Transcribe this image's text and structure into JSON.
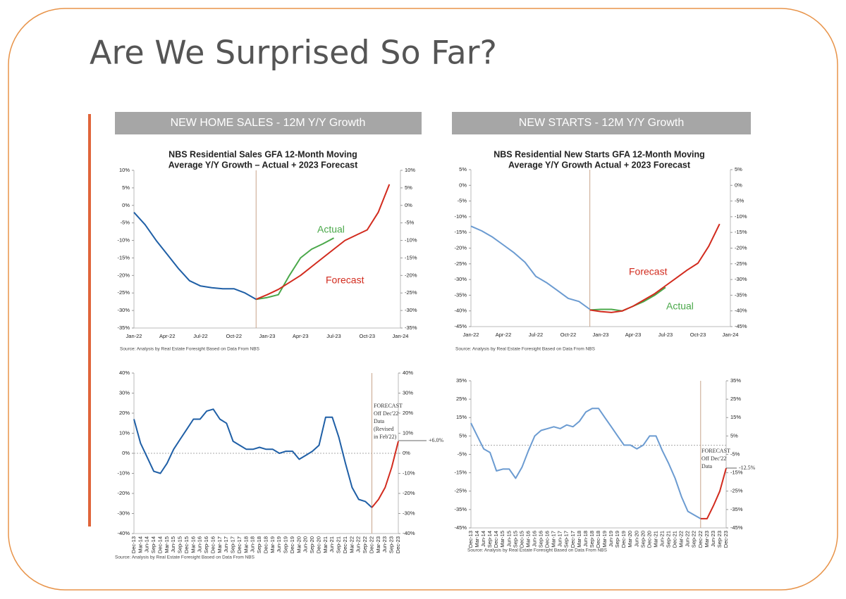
{
  "slide": {
    "title": "Are We Surprised So Far?",
    "headers": [
      "NEW HOME SALES - 12M Y/Y Growth",
      "NEW STARTS - 12M Y/Y Growth"
    ]
  },
  "chart_data": [
    {
      "type": "line",
      "title": [
        "NBS Residential Sales GFA 12-Month Moving",
        "Average Y/Y Growth – Actual + 2023 Forecast"
      ],
      "categories": [
        "Jan-22",
        null,
        null,
        "Apr-22",
        null,
        null,
        "Jul-22",
        null,
        null,
        "Oct-22",
        null,
        null,
        "Jan-23",
        null,
        null,
        "Apr-23",
        null,
        null,
        "Jul-23",
        null,
        null,
        "Oct-23",
        null,
        null,
        "Jan-24"
      ],
      "series": [
        {
          "color": "#1f5fa6",
          "values": [
            -2,
            -5.5,
            -10,
            -14,
            -18,
            -21.5,
            -23,
            -23.5,
            -23.8,
            -23.8,
            -25,
            -26.8,
            null,
            null,
            null,
            null,
            null,
            null,
            null,
            null,
            null,
            null,
            null,
            null,
            null
          ]
        },
        {
          "name": "Actual",
          "color": "#4aa84a",
          "values": [
            null,
            null,
            null,
            null,
            null,
            null,
            null,
            null,
            null,
            null,
            null,
            -26.8,
            -26.3,
            -25.5,
            -20,
            -15,
            -12.5,
            -11,
            -9.3,
            null,
            null,
            null,
            null,
            null,
            null
          ]
        },
        {
          "name": "Forecast",
          "color": "#d22b1e",
          "values": [
            null,
            null,
            null,
            null,
            null,
            null,
            null,
            null,
            null,
            null,
            null,
            -26.8,
            -25.5,
            -24,
            -22,
            -20,
            -17.5,
            -15,
            -12.5,
            -10,
            -8.5,
            -7,
            -2,
            6,
            null
          ]
        }
      ],
      "ylim": [
        -35,
        10
      ],
      "yticks": [
        {
          "value": 10,
          "label": "10%"
        },
        {
          "value": 5,
          "label": "5%"
        },
        {
          "value": 0,
          "label": "0%"
        },
        {
          "value": -5,
          "label": "-5%"
        },
        {
          "value": -10,
          "label": "-10%"
        },
        {
          "value": -15,
          "label": "-15%"
        },
        {
          "value": -20,
          "label": "-20%"
        },
        {
          "value": -25,
          "label": "-25%"
        },
        {
          "value": -30,
          "label": "-30%"
        },
        {
          "value": -35,
          "label": "-35%"
        }
      ],
      "y2lim": [
        -35,
        10
      ],
      "y2ticks": [
        {
          "value": 10,
          "label": "10%"
        },
        {
          "value": 5,
          "label": "5%"
        },
        {
          "value": 0,
          "label": "0%"
        },
        {
          "value": -5,
          "label": "-5%"
        },
        {
          "value": -10,
          "label": "-10%"
        },
        {
          "value": -15,
          "label": "-15%"
        },
        {
          "value": -20,
          "label": "-20%"
        },
        {
          "value": -25,
          "label": "-25%"
        },
        {
          "value": -30,
          "label": "-30%"
        },
        {
          "value": -35,
          "label": "-35%"
        }
      ],
      "divider_index": 11,
      "zero_line": false,
      "source": "Source: Analysis by Real Estate Foresight Based on Data From NBS"
    },
    {
      "type": "line",
      "title": [
        "NBS Residential New Starts GFA 12-Month Moving",
        "Average Y/Y Growth Actual + 2023 Forecast"
      ],
      "categories": [
        "Jan-22",
        null,
        null,
        "Apr-22",
        null,
        null,
        "Jul-22",
        null,
        null,
        "Oct-22",
        null,
        null,
        "Jan-23",
        null,
        null,
        "Apr-23",
        null,
        null,
        "Jul-23",
        null,
        null,
        "Oct-23",
        null,
        null,
        "Jan-24"
      ],
      "series": [
        {
          "color": "#6b9bd1",
          "values": [
            -13,
            -14.5,
            -16.5,
            -19,
            -21.5,
            -24.5,
            -29,
            -31,
            -33.5,
            -36,
            -37,
            -39.5,
            null,
            null,
            null,
            null,
            null,
            null,
            null,
            null,
            null,
            null,
            null,
            null,
            null
          ]
        },
        {
          "name": "Actual",
          "color": "#4aa84a",
          "values": [
            null,
            null,
            null,
            null,
            null,
            null,
            null,
            null,
            null,
            null,
            null,
            -39.7,
            -39.5,
            -39.5,
            -40,
            -38.5,
            -37,
            -35,
            -32.5,
            null,
            null,
            null,
            null,
            null,
            null
          ]
        },
        {
          "name": "Forecast",
          "color": "#d22b1e",
          "values": [
            null,
            null,
            null,
            null,
            null,
            null,
            null,
            null,
            null,
            null,
            null,
            -39.7,
            -40.2,
            -40.5,
            -40,
            -38.5,
            -36.5,
            -34.5,
            -32,
            -29.5,
            -27,
            -24.8,
            -19.4,
            -12.3,
            null
          ]
        }
      ],
      "ylim": [
        -45,
        5
      ],
      "yticks": [
        {
          "value": 5,
          "label": "5%"
        },
        {
          "value": 0,
          "label": "0%"
        },
        {
          "value": -5,
          "label": "-5%"
        },
        {
          "value": -10,
          "label": "-10%"
        },
        {
          "value": -15,
          "label": "-15%"
        },
        {
          "value": -20,
          "label": "-20%"
        },
        {
          "value": -25,
          "label": "-25%"
        },
        {
          "value": -30,
          "label": "-30%"
        },
        {
          "value": -35,
          "label": "-35%"
        },
        {
          "value": -40,
          "label": "-40%"
        },
        {
          "value": -45,
          "label": "-45%"
        }
      ],
      "y2lim": [
        -45,
        5
      ],
      "y2ticks": [
        {
          "value": 5,
          "label": "5%"
        },
        {
          "value": 0,
          "label": "0%"
        },
        {
          "value": -5,
          "label": "-5%"
        },
        {
          "value": -10,
          "label": "-10%"
        },
        {
          "value": -15,
          "label": "-15%"
        },
        {
          "value": -20,
          "label": "-20%"
        },
        {
          "value": -25,
          "label": "-25%"
        },
        {
          "value": -30,
          "label": "-30%"
        },
        {
          "value": -35,
          "label": "-35%"
        },
        {
          "value": -40,
          "label": "-40%"
        },
        {
          "value": -45,
          "label": "-45%"
        }
      ],
      "divider_index": 11,
      "zero_line": false,
      "source": "Source: Analysis by Real Estate Foresight Based on Data From NBS"
    },
    {
      "type": "line",
      "categories": [
        "Dec-13",
        "Mar-14",
        "Jun-14",
        "Sep-14",
        "Dec-14",
        "Mar-15",
        "Jun-15",
        "Sep-15",
        "Dec-15",
        "Mar-16",
        "Jun-16",
        "Sep-16",
        "Dec-16",
        "Mar-17",
        "Jun-17",
        "Sep-17",
        "Dec-17",
        "Mar-18",
        "Jun-18",
        "Sep-18",
        "Dec-18",
        "Mar-19",
        "Jun-19",
        "Sep-19",
        "Dec-19",
        "Mar-20",
        "Jun-20",
        "Sep-20",
        "Dec-20",
        "Mar-21",
        "Jun-21",
        "Sep-21",
        "Dec-21",
        "Mar-22",
        "Jun-22",
        "Sep-22",
        "Dec-22",
        "Mar-23",
        "Jun-23",
        "Sep-23",
        "Dec-23"
      ],
      "series": [
        {
          "color": "#1f5fa6",
          "values": [
            17,
            5,
            -2,
            -9,
            -10,
            -5,
            2,
            7,
            12,
            17,
            17,
            21,
            22,
            17,
            15,
            6,
            4,
            2,
            2,
            3,
            2,
            2,
            0,
            1,
            1,
            -3,
            -1,
            1,
            4,
            18,
            18,
            8,
            -5,
            -17,
            -23,
            -24,
            -27,
            null,
            null,
            null,
            null
          ]
        },
        {
          "color": "#d22b1e",
          "values": [
            null,
            null,
            null,
            null,
            null,
            null,
            null,
            null,
            null,
            null,
            null,
            null,
            null,
            null,
            null,
            null,
            null,
            null,
            null,
            null,
            null,
            null,
            null,
            null,
            null,
            null,
            null,
            null,
            null,
            null,
            null,
            null,
            null,
            null,
            null,
            null,
            -27,
            -23,
            -17,
            -7,
            6
          ]
        }
      ],
      "ylim": [
        -40,
        40
      ],
      "yticks": [
        {
          "value": 40,
          "label": "40%"
        },
        {
          "value": 30,
          "label": "30%"
        },
        {
          "value": 20,
          "label": "20%"
        },
        {
          "value": 10,
          "label": "10%"
        },
        {
          "value": 0,
          "label": "0%"
        },
        {
          "value": -10,
          "label": "-10%"
        },
        {
          "value": -20,
          "label": "-20%"
        },
        {
          "value": -30,
          "label": "-30%"
        },
        {
          "value": -40,
          "label": "-40%"
        }
      ],
      "y2lim": [
        -40,
        40
      ],
      "y2ticks": [
        {
          "value": 40,
          "label": "40%"
        },
        {
          "value": 30,
          "label": "30%"
        },
        {
          "value": 20,
          "label": "20%"
        },
        {
          "value": 10,
          "label": "10%"
        },
        {
          "value": 0,
          "label": "0%"
        },
        {
          "value": -10,
          "label": "-10%"
        },
        {
          "value": -20,
          "label": "-20%"
        },
        {
          "value": -30,
          "label": "-30%"
        },
        {
          "value": -40,
          "label": "-40%"
        }
      ],
      "divider_index": 36,
      "zero_line": true,
      "annotations": [
        "FORECAST",
        "Off Dec'22",
        "Data",
        "(Revised",
        "in Feb'22)",
        "+6.0%"
      ],
      "source": "Source: Analysis by Real Estate Foresight Based on Data From NBS"
    },
    {
      "type": "line",
      "categories": [
        "Dec-13",
        "Mar-14",
        "Jun-14",
        "Sep-14",
        "Dec-14",
        "Mar-15",
        "Jun-15",
        "Sep-15",
        "Dec-15",
        "Mar-16",
        "Jun-16",
        "Sep-16",
        "Dec-16",
        "Mar-17",
        "Jun-17",
        "Sep-17",
        "Dec-17",
        "Mar-18",
        "Jun-18",
        "Sep-18",
        "Dec-18",
        "Mar-19",
        "Jun-19",
        "Sep-19",
        "Dec-19",
        "Mar-20",
        "Jun-20",
        "Sep-20",
        "Dec-20",
        "Mar-21",
        "Jun-21",
        "Sep-21",
        "Dec-21",
        "Mar-22",
        "Jun-22",
        "Sep-22",
        "Dec-22",
        "Mar-23",
        "Jun-23",
        "Sep-23",
        "Dec-23"
      ],
      "series": [
        {
          "color": "#6b9bd1",
          "values": [
            12,
            5,
            -2,
            -4,
            -14,
            -13,
            -13,
            -18,
            -12,
            -3,
            5,
            8,
            9,
            10,
            9,
            11,
            10,
            13,
            18,
            20,
            20,
            15,
            10,
            5,
            0,
            0,
            -2,
            0,
            5,
            5,
            -3,
            -10,
            -18,
            -28,
            -36,
            -38,
            -40,
            null,
            null,
            null,
            null
          ]
        },
        {
          "color": "#d22b1e",
          "values": [
            null,
            null,
            null,
            null,
            null,
            null,
            null,
            null,
            null,
            null,
            null,
            null,
            null,
            null,
            null,
            null,
            null,
            null,
            null,
            null,
            null,
            null,
            null,
            null,
            null,
            null,
            null,
            null,
            null,
            null,
            null,
            null,
            null,
            null,
            null,
            null,
            -40,
            -40,
            -33,
            -25,
            -12.5
          ]
        }
      ],
      "ylim": [
        -45,
        35
      ],
      "yticks": [
        {
          "value": 35,
          "label": "35%"
        },
        {
          "value": 25,
          "label": "25%"
        },
        {
          "value": 15,
          "label": "15%"
        },
        {
          "value": 5,
          "label": "5%"
        },
        {
          "value": -5,
          "label": "-5%"
        },
        {
          "value": -15,
          "label": "-15%"
        },
        {
          "value": -25,
          "label": "-25%"
        },
        {
          "value": -35,
          "label": "-35%"
        },
        {
          "value": -45,
          "label": "-45%"
        }
      ],
      "y2lim": [
        -45,
        35
      ],
      "y2ticks": [
        {
          "value": 35,
          "label": "35%"
        },
        {
          "value": 25,
          "label": "25%"
        },
        {
          "value": 15,
          "label": "15%"
        },
        {
          "value": 5,
          "label": "5%"
        },
        {
          "value": -5,
          "label": "-5%"
        },
        {
          "value": -15,
          "label": "-15%"
        },
        {
          "value": -25,
          "label": "-25%"
        },
        {
          "value": -35,
          "label": "-35%"
        },
        {
          "value": -45,
          "label": "-45%"
        }
      ],
      "divider_index": 36,
      "zero_line": true,
      "annotations": [
        "FORECAST",
        "Off Dec'22",
        "Data",
        "-12.5%"
      ],
      "source": "Source: Analysis by Real Estate Foresight Based on Data From NBS"
    }
  ]
}
